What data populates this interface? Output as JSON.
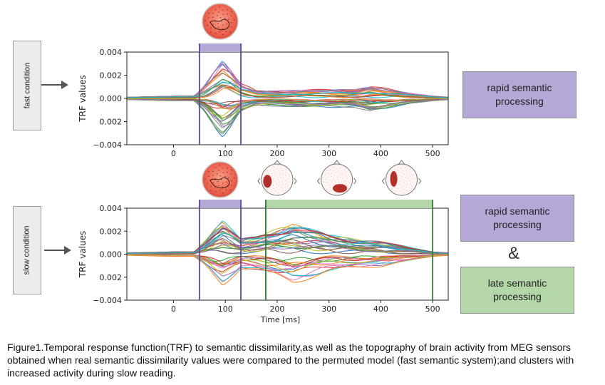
{
  "left_labels": {
    "fast": "fast condition",
    "slow": "slow condition"
  },
  "right_labels": {
    "fast_box": "rapid semantic processing",
    "slow_box1": "rapid semantic processing",
    "amp": "&",
    "slow_box2": "late semantic processing"
  },
  "caption": "Figure1.Temporal response function(TRF) to semantic dissimilarity,as well as the topography of brain activity from MEG sensors obtained when real semantic dissimilarity values were compared to the permuted model (fast semantic system);and clusters with increased activity during slow reading.",
  "colors": {
    "purple": "#b5a8d6",
    "green": "#b3d7a9",
    "purple_line": "#5a4b9a",
    "green_line": "#2f7a2f"
  },
  "chart_data": [
    {
      "type": "line",
      "panel": "fast condition",
      "xlabel": "",
      "ylabel": "TRF values",
      "xlim": [
        -90,
        530
      ],
      "ylim": [
        -0.004,
        0.004
      ],
      "xticks": [
        0,
        100,
        200,
        300,
        400,
        500
      ],
      "yticks": [
        "0.004",
        "0.002",
        "0.000",
        "0.002",
        "−0.004"
      ],
      "windows": [
        {
          "color": "purple",
          "start": 50,
          "end": 130
        }
      ],
      "topomaps": [
        {
          "type": "full",
          "time": 90
        }
      ],
      "series_style": "approximately 40 overlaid multicolored sensor traces",
      "envelope": {
        "x": [
          -90,
          0,
          40,
          60,
          80,
          95,
          110,
          130,
          160,
          200,
          250,
          300,
          350,
          380,
          420,
          460,
          500,
          530
        ],
        "amp": [
          0.0001,
          0.0002,
          0.0002,
          0.001,
          0.0022,
          0.003,
          0.0024,
          0.0012,
          0.0006,
          0.0006,
          0.0007,
          0.0007,
          0.0007,
          0.001,
          0.0007,
          0.0004,
          0.0002,
          0.0001
        ]
      }
    },
    {
      "type": "line",
      "panel": "slow condition",
      "xlabel": "Time [ms]",
      "ylabel": "TRF values",
      "xlim": [
        -90,
        530
      ],
      "ylim": [
        -0.004,
        0.004
      ],
      "xticks": [
        0,
        100,
        200,
        300,
        400,
        500
      ],
      "yticks": [
        "0.004",
        "0.002",
        "0.000",
        "0.002",
        "−0.004"
      ],
      "windows": [
        {
          "color": "purple",
          "start": 50,
          "end": 130
        },
        {
          "color": "green",
          "start": 178,
          "end": 500
        }
      ],
      "topomaps": [
        {
          "type": "full",
          "time": 90
        },
        {
          "type": "small",
          "time": 200
        },
        {
          "type": "small",
          "time": 315
        },
        {
          "type": "small",
          "time": 440
        }
      ],
      "series_style": "approximately 40 overlaid multicolored sensor traces",
      "envelope": {
        "x": [
          -90,
          0,
          40,
          60,
          80,
          95,
          110,
          130,
          160,
          200,
          230,
          260,
          300,
          350,
          400,
          450,
          500,
          530
        ],
        "amp": [
          0.0001,
          0.0002,
          0.0002,
          0.001,
          0.002,
          0.0026,
          0.002,
          0.0012,
          0.0014,
          0.002,
          0.0024,
          0.002,
          0.0015,
          0.0012,
          0.001,
          0.0006,
          0.0002,
          0.0001
        ]
      }
    }
  ]
}
